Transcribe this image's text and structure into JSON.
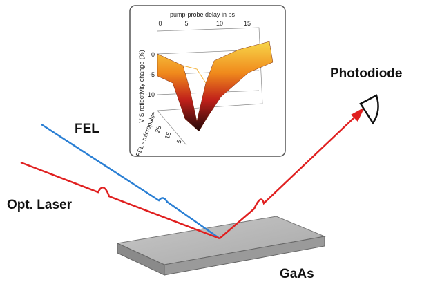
{
  "labels": {
    "fel": "FEL",
    "laser": "Opt. Laser",
    "photodiode": "Photodiode",
    "sample": "GaAs"
  },
  "inset": {
    "x_label": "pump-probe delay in ps",
    "x_ticks": [
      "0",
      "5",
      "10",
      "15"
    ],
    "y_label": "VIS reflectivity change (%)",
    "y_ticks": [
      "0",
      "-5",
      "-10"
    ],
    "z_label": "FEL - micropulse",
    "z_ticks": [
      "25",
      "15",
      "5"
    ]
  }
}
